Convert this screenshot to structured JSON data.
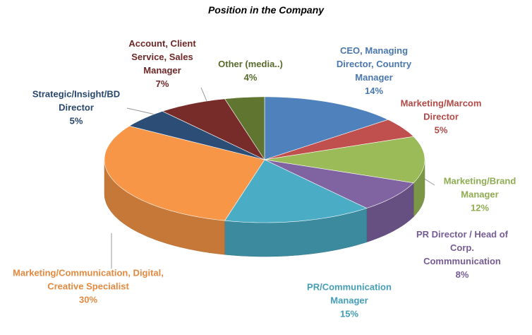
{
  "chart_data": {
    "type": "pie3d",
    "title": "Position in the Company",
    "categories": [
      "CEO, Managing Director, Country Manager",
      "Marketing/Marcom Director",
      "Marketing/Brand Manager",
      "PR Director / Head of Corp. Commmunication",
      "PR/Communication Manager",
      "Marketing/Communication, Digital, Creative Specialist",
      "Strategic/Insight/BD Director",
      "Account, Client Service, Sales Manager",
      "Other (media..)"
    ],
    "values": [
      14,
      5,
      12,
      8,
      15,
      30,
      5,
      7,
      4
    ],
    "value_labels": [
      "14%",
      "5%",
      "12%",
      "8%",
      "15%",
      "30%",
      "5%",
      "7%",
      "4%"
    ],
    "colors": [
      "#4f81bd",
      "#c0504d",
      "#9bbb59",
      "#8064a2",
      "#4bacc6",
      "#f79646",
      "#2c4d75",
      "#772c2a",
      "#5f7530"
    ]
  }
}
